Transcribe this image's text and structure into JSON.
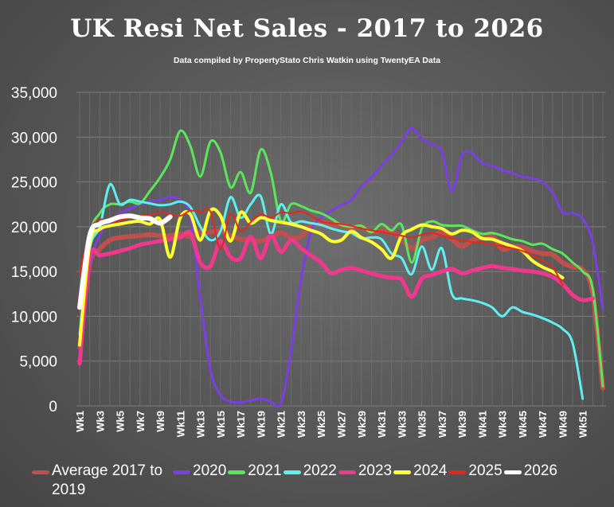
{
  "chart_data": {
    "type": "line",
    "title": "UK  Resi Net Sales - 2017 to 2026",
    "subtitle": "Data compiled by PropertyStato Chris Watkin using TwentyEA Data",
    "xlabel": "",
    "ylabel": "",
    "ylim": [
      0,
      35000
    ],
    "yticks": [
      "0",
      "5,000",
      "10,000",
      "15,000",
      "20,000",
      "25,000",
      "30,000",
      "35,000"
    ],
    "x_tick_labels": [
      "Wk1",
      "Wk3",
      "Wk5",
      "Wk7",
      "Wk9",
      "Wk11",
      "Wk13",
      "Wk15",
      "Wk17",
      "Wk19",
      "Wk21",
      "Wk23",
      "Wk25",
      "Wk27",
      "Wk29",
      "Wk31",
      "Wk33",
      "Wk35",
      "Wk37",
      "Wk39",
      "Wk41",
      "Wk43",
      "Wk45",
      "Wk47",
      "Wk49",
      "Wk51"
    ],
    "grid": true,
    "legend_position": "bottom",
    "series": [
      {
        "name": "Average 2017 to 2019",
        "color": "#c0504d",
        "width": 6,
        "values": [
          6500,
          15800,
          17500,
          18500,
          18800,
          18900,
          19000,
          19100,
          19000,
          19000,
          19200,
          18900,
          19400,
          19400,
          19500,
          19000,
          18600,
          18500,
          18400,
          18900,
          19300,
          18800,
          18900,
          20200,
          20500,
          20300,
          20200,
          19800,
          20000,
          19400,
          19600,
          19500,
          18600,
          17600,
          18500,
          18800,
          19400,
          18600,
          17800,
          18500,
          18800,
          19000,
          17500,
          17800,
          17700,
          17300,
          17000,
          16900,
          16000,
          15500,
          15200,
          12500,
          2000
        ]
      },
      {
        "name": "2020",
        "color": "#7b3fe4",
        "width": 3,
        "values": [
          6000,
          15500,
          19000,
          20500,
          21500,
          22000,
          22500,
          22800,
          23000,
          23300,
          23000,
          21000,
          12000,
          4000,
          1200,
          500,
          400,
          600,
          800,
          500,
          300,
          6000,
          14000,
          19500,
          21000,
          21800,
          22400,
          23000,
          24500,
          25500,
          26800,
          28000,
          29500,
          31000,
          29800,
          29200,
          28400,
          24000,
          28000,
          28200,
          27100,
          26800,
          26300,
          26000,
          25600,
          25400,
          25000,
          23800,
          21600,
          21500,
          20900,
          18200,
          10800
        ]
      },
      {
        "name": "2021",
        "color": "#5ce65c",
        "width": 3,
        "values": [
          5000,
          18500,
          21500,
          22500,
          22500,
          22800,
          22600,
          24000,
          25500,
          27500,
          30700,
          29000,
          25600,
          29500,
          28300,
          24400,
          26100,
          23800,
          28600,
          26000,
          20600,
          22500,
          22300,
          21800,
          21500,
          20900,
          20200,
          20000,
          20100,
          19400,
          20300,
          19600,
          20200,
          16000,
          19800,
          20600,
          20200,
          20100,
          20100,
          19600,
          19200,
          19300,
          19000,
          18600,
          18400,
          18000,
          18100,
          17500,
          17000,
          16000,
          15000,
          13000,
          2200
        ]
      },
      {
        "name": "2022",
        "color": "#5ef0f0",
        "width": 3,
        "values": [
          8000,
          17500,
          20000,
          24700,
          22500,
          23000,
          22800,
          22600,
          22400,
          22500,
          22800,
          22200,
          20000,
          18500,
          19500,
          23300,
          21000,
          22500,
          23400,
          19200,
          22500,
          20500,
          20600,
          20400,
          20200,
          19800,
          19500,
          19300,
          18700,
          18800,
          18600,
          17000,
          16500,
          14700,
          17800,
          15200,
          17600,
          12500,
          12000,
          11800,
          11500,
          11000,
          10000,
          11000,
          10500,
          10200,
          9800,
          9300,
          8600,
          7000,
          800
        ]
      },
      {
        "name": "2023",
        "color": "#f0388c",
        "width": 5,
        "values": [
          4700,
          16500,
          16800,
          17000,
          17300,
          17600,
          18000,
          18200,
          18400,
          18600,
          18800,
          19300,
          16000,
          15600,
          18400,
          16600,
          16500,
          18900,
          16500,
          19000,
          17200,
          18500,
          17600,
          16800,
          16000,
          14800,
          15200,
          15400,
          15100,
          14800,
          14500,
          14300,
          14100,
          12200,
          14200,
          14600,
          15000,
          15300,
          14800,
          15100,
          15400,
          15600,
          15400,
          15300,
          15100,
          15000,
          14800,
          14400,
          13600,
          12400,
          11800,
          12000
        ]
      },
      {
        "name": "2024",
        "color": "#ffff33",
        "width": 4,
        "values": [
          6800,
          18000,
          19700,
          20100,
          20300,
          20500,
          20600,
          20300,
          20800,
          16600,
          21000,
          21400,
          18500,
          21800,
          21200,
          18400,
          21600,
          20400,
          21000,
          20700,
          20500,
          20300,
          20000,
          19600,
          19200,
          18400,
          18500,
          19500,
          18800,
          18300,
          17500,
          16500,
          19000,
          19700,
          20200,
          20000,
          19800,
          19200,
          19600,
          19400,
          18700,
          18600,
          18200,
          17800,
          17300,
          16200,
          15500,
          15000,
          14300
        ]
      },
      {
        "name": "2025",
        "color": "#e8261c",
        "width": 2,
        "values": [
          14500,
          19500,
          20800,
          20500,
          20700,
          21000,
          21200,
          21300,
          21600,
          21400,
          21200,
          21800,
          21600,
          21700,
          17500,
          21400,
          19500,
          20500,
          21400,
          21000,
          21600,
          21500,
          21700,
          21200,
          20600,
          20400,
          20300,
          20100,
          19800,
          19600,
          19400,
          19200,
          19000,
          18800,
          19100,
          19300,
          19000,
          18700,
          18500,
          18300,
          18200,
          18000,
          17800,
          17600,
          17300,
          16800,
          16200,
          15500,
          13500
        ]
      },
      {
        "name": "2026",
        "color": "#ffffff",
        "width": 6,
        "values": [
          11000,
          19000,
          20300,
          20700,
          21100,
          21200,
          21000,
          20900,
          20400,
          21100
        ]
      }
    ]
  }
}
